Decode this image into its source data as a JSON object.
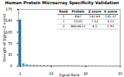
{
  "chart_data": {
    "type": "bar",
    "title": "Human Protein Microarray Specificity Validation",
    "xlabel": "Signal Rank",
    "ylabel": "Strength of Signal (Z score)",
    "x": [
      1,
      2,
      3,
      4,
      5,
      6,
      7,
      8,
      9,
      10,
      11,
      12,
      13,
      14,
      15,
      16,
      17,
      18,
      19,
      20,
      21,
      22,
      23,
      24,
      25,
      26,
      27,
      28,
      29,
      30
    ],
    "values": [
      142.69,
      7.52,
      4.5,
      3.1,
      2.8,
      2.5,
      2.3,
      2.1,
      2.0,
      1.9,
      1.8,
      1.7,
      1.65,
      1.6,
      1.55,
      1.5,
      1.45,
      1.4,
      1.35,
      1.3,
      1.25,
      1.2,
      1.15,
      1.1,
      1.05,
      1.0,
      0.95,
      0.9,
      0.85,
      0.8
    ],
    "colors": [
      "#1a7abf",
      "#29a8e0",
      "#29a8e0",
      "#29a8e0",
      "#29a8e0",
      "#29a8e0",
      "#29a8e0",
      "#29a8e0",
      "#29a8e0",
      "#29a8e0",
      "#29a8e0",
      "#29a8e0",
      "#29a8e0",
      "#29a8e0",
      "#29a8e0",
      "#29a8e0",
      "#29a8e0",
      "#29a8e0",
      "#29a8e0",
      "#29a8e0",
      "#29a8e0",
      "#29a8e0",
      "#29a8e0",
      "#29a8e0",
      "#29a8e0",
      "#29a8e0",
      "#29a8e0",
      "#29a8e0",
      "#29a8e0",
      "#29a8e0"
    ],
    "xlim": [
      0.5,
      30
    ],
    "xticks": [
      1,
      10,
      20,
      30
    ],
    "ylim": [
      0,
      175
    ],
    "yticks": [
      0,
      35,
      70,
      105,
      140,
      175
    ],
    "grid": false,
    "table_headers": [
      "Rank",
      "Protein",
      "Z score",
      "S score"
    ],
    "table_rows": [
      [
        "1",
        "KI67",
        "142.69",
        "135.37"
      ],
      [
        "2",
        "CD25",
        "7.52",
        "3.22"
      ],
      [
        "3",
        "BHLHE22",
        "4.5",
        "1.93"
      ]
    ]
  }
}
